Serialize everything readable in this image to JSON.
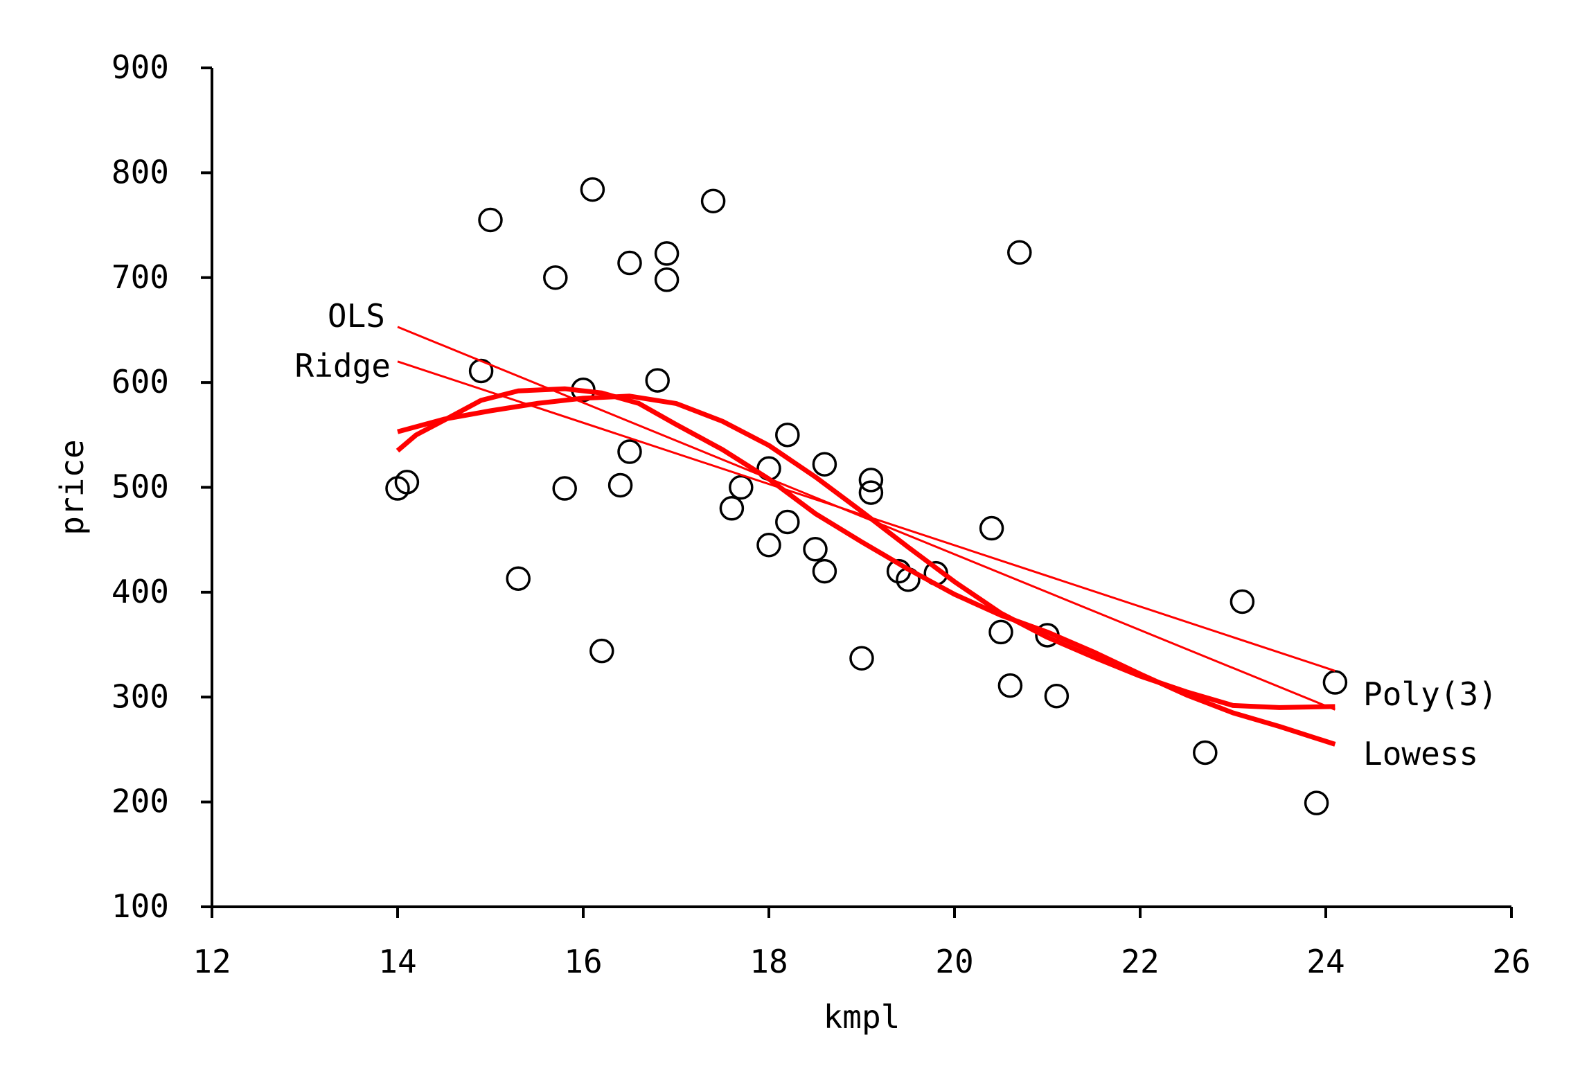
{
  "chart_data": {
    "type": "scatter",
    "title": "",
    "xlabel": "kmpl",
    "ylabel": "price",
    "xlim": [
      12,
      26
    ],
    "ylim": [
      100,
      900
    ],
    "xticks": [
      "12",
      "14",
      "16",
      "18",
      "20",
      "22",
      "24",
      "26"
    ],
    "yticks": [
      "100",
      "200",
      "300",
      "400",
      "500",
      "600",
      "700",
      "800",
      "900"
    ],
    "grid": false,
    "legend": "none",
    "colors": {
      "points": "#000000",
      "lines": "#ff0000"
    },
    "points": [
      [
        14.0,
        499
      ],
      [
        14.1,
        505
      ],
      [
        14.9,
        611
      ],
      [
        15.0,
        755
      ],
      [
        15.3,
        413
      ],
      [
        15.7,
        700
      ],
      [
        15.8,
        499
      ],
      [
        16.0,
        593
      ],
      [
        16.1,
        784
      ],
      [
        16.2,
        344
      ],
      [
        16.4,
        502
      ],
      [
        16.5,
        534
      ],
      [
        16.5,
        714
      ],
      [
        16.8,
        602
      ],
      [
        16.9,
        723
      ],
      [
        16.9,
        698
      ],
      [
        17.4,
        773
      ],
      [
        17.6,
        480
      ],
      [
        17.7,
        500
      ],
      [
        18.0,
        518
      ],
      [
        18.0,
        445
      ],
      [
        18.2,
        550
      ],
      [
        18.2,
        467
      ],
      [
        18.5,
        441
      ],
      [
        18.6,
        522
      ],
      [
        18.6,
        420
      ],
      [
        19.0,
        337
      ],
      [
        19.1,
        507
      ],
      [
        19.1,
        495
      ],
      [
        19.4,
        420
      ],
      [
        19.5,
        412
      ],
      [
        19.8,
        418
      ],
      [
        20.4,
        461
      ],
      [
        20.5,
        362
      ],
      [
        20.6,
        311
      ],
      [
        20.7,
        724
      ],
      [
        21.0,
        359
      ],
      [
        21.1,
        301
      ],
      [
        22.7,
        247
      ],
      [
        23.1,
        391
      ],
      [
        23.9,
        199
      ],
      [
        24.1,
        314
      ]
    ],
    "series": [
      {
        "name": "OLS",
        "type": "line",
        "width": "thin",
        "x": [
          14.0,
          24.1
        ],
        "y": [
          653,
          288
        ]
      },
      {
        "name": "Ridge",
        "type": "line",
        "width": "thin",
        "x": [
          14.0,
          24.1
        ],
        "y": [
          620,
          325
        ]
      },
      {
        "name": "Poly(3)",
        "type": "line",
        "width": "thick",
        "x": [
          14.0,
          14.5,
          15.0,
          15.5,
          16.0,
          16.5,
          17.0,
          17.5,
          18.0,
          18.5,
          19.0,
          19.5,
          20.0,
          20.5,
          21.0,
          21.5,
          22.0,
          22.5,
          23.0,
          23.5,
          24.1
        ],
        "y": [
          553,
          565,
          573,
          580,
          585,
          587,
          580,
          563,
          540,
          510,
          477,
          443,
          410,
          380,
          357,
          338,
          320,
          305,
          292,
          290,
          291
        ]
      },
      {
        "name": "Lowess",
        "type": "line",
        "width": "thick",
        "x": [
          14.0,
          14.2,
          14.5,
          14.9,
          15.3,
          15.8,
          16.2,
          16.6,
          17.0,
          17.5,
          18.0,
          18.5,
          19.0,
          19.5,
          20.0,
          20.5,
          21.0,
          21.5,
          22.0,
          22.5,
          23.0,
          23.5,
          24.1
        ],
        "y": [
          535,
          550,
          564,
          583,
          592,
          594,
          590,
          580,
          560,
          536,
          508,
          475,
          448,
          422,
          398,
          378,
          362,
          343,
          322,
          302,
          285,
          272,
          255
        ]
      }
    ]
  }
}
